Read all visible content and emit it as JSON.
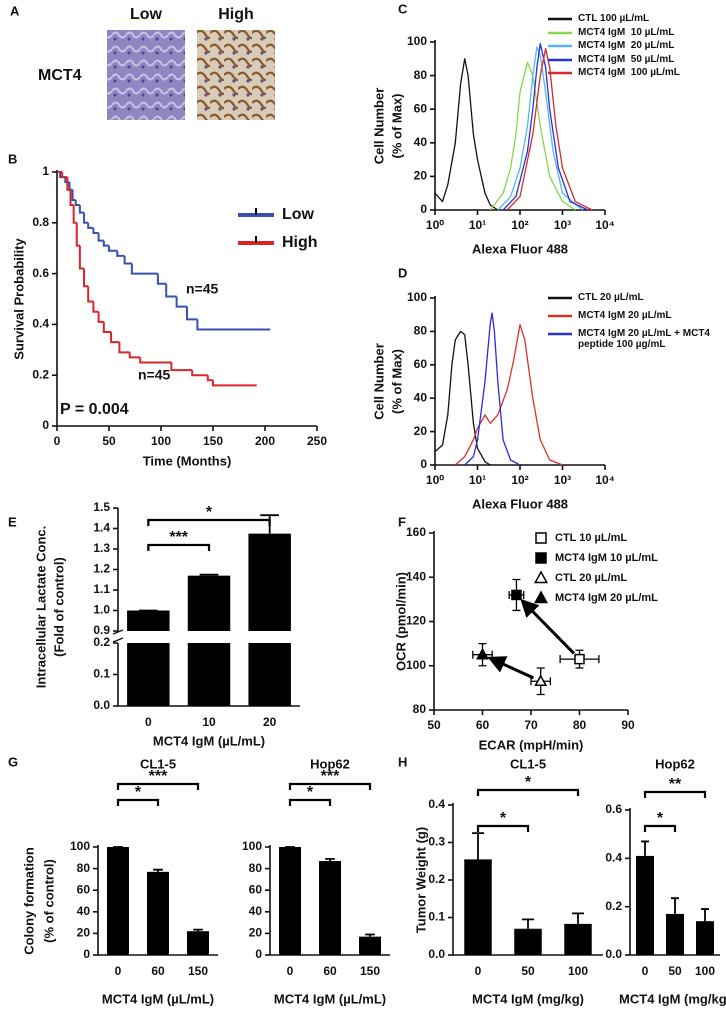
{
  "panel_a": {
    "panel": "A",
    "columns": [
      "Low",
      "High"
    ],
    "row_label": "MCT4"
  },
  "chart_data": [
    {
      "type": "line",
      "panel": "B",
      "step": true,
      "xlabel": "Time (Months)",
      "ylabel": "Survival Probability",
      "xlim": [
        0,
        250
      ],
      "xticks": [
        0,
        50,
        100,
        150,
        200,
        250
      ],
      "ylim": [
        0,
        1
      ],
      "yticks": [
        0,
        0.2,
        0.4,
        0.6,
        0.8,
        1
      ],
      "legend": "upper right",
      "series": [
        {
          "name": "Low",
          "color": "#3651b0",
          "x": [
            0,
            3,
            8,
            12,
            15,
            18,
            22,
            26,
            30,
            35,
            40,
            45,
            50,
            58,
            65,
            72,
            97,
            105,
            115,
            125,
            135,
            205
          ],
          "values": [
            1,
            0.98,
            0.96,
            0.93,
            0.89,
            0.87,
            0.84,
            0.8,
            0.78,
            0.76,
            0.73,
            0.71,
            0.69,
            0.67,
            0.64,
            0.6,
            0.56,
            0.51,
            0.47,
            0.42,
            0.38,
            0.38
          ]
        },
        {
          "name": "High",
          "color": "#d9252a",
          "x": [
            0,
            5,
            10,
            13,
            16,
            19,
            22,
            26,
            30,
            35,
            40,
            45,
            52,
            60,
            70,
            80,
            110,
            130,
            145,
            150,
            192
          ],
          "values": [
            1,
            0.98,
            0.93,
            0.87,
            0.8,
            0.71,
            0.62,
            0.55,
            0.49,
            0.45,
            0.41,
            0.37,
            0.33,
            0.29,
            0.27,
            0.25,
            0.22,
            0.2,
            0.18,
            0.16,
            0.16
          ]
        }
      ],
      "annotations": [
        "n=45",
        "n=45",
        "P = 0.004"
      ]
    },
    {
      "type": "line",
      "panel": "C",
      "xscale": "log",
      "xlabel": "Alexa Fluor 488",
      "ylabel": [
        "Cell Number",
        "(% of Max)"
      ],
      "xlim": [
        1,
        10000
      ],
      "xticks": [
        {
          "value": 1,
          "label": "10⁰"
        },
        {
          "value": 10,
          "label": "10¹"
        },
        {
          "value": 100,
          "label": "10²"
        },
        {
          "value": 1000,
          "label": "10³"
        },
        {
          "value": 10000,
          "label": "10⁴"
        }
      ],
      "ylim": [
        0,
        100
      ],
      "yticks": [
        0,
        20,
        40,
        60,
        80,
        100
      ],
      "legend": "upper right",
      "series": [
        {
          "name": "CTL 100 µL/mL",
          "color": "#111111",
          "x": [
            1,
            1.5,
            2,
            3,
            4,
            5,
            6,
            8,
            10,
            15,
            20,
            30
          ],
          "values": [
            10,
            5,
            15,
            40,
            75,
            90,
            80,
            45,
            30,
            10,
            3,
            0
          ]
        },
        {
          "name": "MCT4 IgM  10 µL/mL",
          "color": "#86d84a",
          "x": [
            20,
            40,
            60,
            80,
            100,
            150,
            200,
            300,
            500,
            1000,
            2000
          ],
          "values": [
            0,
            10,
            25,
            45,
            70,
            88,
            80,
            50,
            20,
            5,
            0
          ]
        },
        {
          "name": "MCT4 IgM  20 µL/mL",
          "color": "#5ab4f0",
          "x": [
            30,
            60,
            100,
            150,
            200,
            250,
            300,
            400,
            600,
            1000,
            3000
          ],
          "values": [
            0,
            8,
            25,
            50,
            80,
            97,
            92,
            70,
            35,
            10,
            0
          ]
        },
        {
          "name": "MCT4 IgM  50 µL/mL",
          "color": "#2233dd",
          "x": [
            40,
            80,
            150,
            200,
            250,
            300,
            400,
            500,
            800,
            1500,
            4000
          ],
          "values": [
            0,
            8,
            35,
            60,
            85,
            99,
            85,
            60,
            25,
            5,
            0
          ]
        },
        {
          "name": "MCT4 IgM  100 µL/mL",
          "color": "#d62a2a",
          "x": [
            50,
            100,
            200,
            300,
            400,
            500,
            700,
            1000,
            2000,
            5000
          ],
          "values": [
            0,
            8,
            45,
            80,
            96,
            85,
            50,
            25,
            5,
            0
          ]
        }
      ]
    },
    {
      "type": "line",
      "panel": "D",
      "xscale": "log",
      "xlabel": "Alexa Fluor 488",
      "ylabel": [
        "Cell Number",
        "(% of Max)"
      ],
      "xlim": [
        1,
        10000
      ],
      "xticks": [
        {
          "value": 1,
          "label": "10⁰"
        },
        {
          "value": 10,
          "label": "10¹"
        },
        {
          "value": 100,
          "label": "10²"
        },
        {
          "value": 1000,
          "label": "10³"
        },
        {
          "value": 10000,
          "label": "10⁴"
        }
      ],
      "ylim": [
        0,
        100
      ],
      "yticks": [
        0,
        20,
        40,
        60,
        80,
        100
      ],
      "legend": "upper right",
      "series": [
        {
          "name": "CTL 20 µL/mL",
          "color": "#111111",
          "x": [
            1,
            1.5,
            2,
            2.5,
            3,
            4,
            5,
            6,
            8,
            10,
            15,
            20
          ],
          "values": [
            8,
            12,
            30,
            60,
            75,
            80,
            78,
            60,
            25,
            10,
            2,
            0
          ]
        },
        {
          "name": "MCT4 IgM 20 µL/mL",
          "color": "#d9302c",
          "x": [
            3,
            5,
            8,
            10,
            15,
            20,
            30,
            50,
            70,
            100,
            130,
            200,
            300,
            500,
            1000
          ],
          "values": [
            0,
            5,
            15,
            22,
            30,
            25,
            30,
            45,
            62,
            84,
            75,
            40,
            15,
            3,
            0
          ]
        },
        {
          "name": "MCT4 IgM 20 µL/mL + MCT4 peptide 100 µg/mL",
          "color": "#2b2bdd",
          "x": [
            5,
            8,
            10,
            15,
            20,
            22,
            25,
            30,
            40,
            60,
            100
          ],
          "values": [
            0,
            5,
            15,
            50,
            85,
            91,
            80,
            50,
            15,
            3,
            0
          ]
        }
      ]
    },
    {
      "type": "bar",
      "panel": "E",
      "xlabel": "MCT4 IgM (µL/mL)",
      "ylabel": [
        "Intracellular Lactate Conc.",
        "(Fold of control)"
      ],
      "ylim": [
        0,
        1.5
      ],
      "broken_y": [
        [
          0,
          0.2
        ],
        [
          0.9,
          1.5
        ]
      ],
      "yticks": [
        {
          "value": 0,
          "label": "0.0"
        },
        0.1,
        0.2,
        0.9,
        {
          "value": 1,
          "label": "1.0"
        },
        1.1,
        1.2,
        1.3,
        1.4,
        1.5
      ],
      "categories": [
        "0",
        "10",
        "20"
      ],
      "values": [
        1,
        1.17,
        1.375
      ],
      "errors": [
        0,
        0.005,
        0.09
      ],
      "color": "#000000",
      "significance": [
        {
          "from": "0",
          "to": "10",
          "text": "***"
        },
        {
          "from": "0",
          "to": "20",
          "text": "*"
        }
      ]
    },
    {
      "type": "scatter",
      "panel": "F",
      "xlabel": "ECAR (mpH/min)",
      "ylabel": "OCR (pmol/min)",
      "xlim": [
        50,
        90
      ],
      "xticks": [
        50,
        60,
        70,
        80,
        90
      ],
      "ylim": [
        80,
        160
      ],
      "yticks": [
        80,
        100,
        120,
        140,
        160
      ],
      "legend": "upper right",
      "series": [
        {
          "name": "CTL 10 µL/mL",
          "color": "#000000",
          "marker": "square",
          "filled": false,
          "x": [
            80
          ],
          "values": [
            103
          ],
          "xerr": [
            4
          ],
          "yerr": [
            4
          ]
        },
        {
          "name": "MCT4 IgM 10 µL/mL",
          "color": "#000000",
          "marker": "square",
          "filled": true,
          "x": [
            67
          ],
          "values": [
            132
          ],
          "xerr": [
            1.5
          ],
          "yerr": [
            7
          ]
        },
        {
          "name": "CTL 20 µL/mL",
          "color": "#000000",
          "marker": "triangle",
          "filled": false,
          "x": [
            72
          ],
          "values": [
            93
          ],
          "xerr": [
            2
          ],
          "yerr": [
            6
          ]
        },
        {
          "name": "MCT4 IgM 20 µL/mL",
          "color": "#000000",
          "marker": "triangle",
          "filled": true,
          "x": [
            60
          ],
          "values": [
            105
          ],
          "xerr": [
            2
          ],
          "yerr": [
            5
          ]
        }
      ],
      "arrows": [
        [
          "CTL 10 µL/mL",
          "MCT4 IgM 10 µL/mL"
        ],
        [
          "CTL 20 µL/mL",
          "MCT4 IgM 20 µL/mL"
        ]
      ]
    },
    {
      "type": "bar",
      "panel": "G",
      "title": "CL1-5",
      "xlabel": "MCT4 IgM (µL/mL)",
      "ylabel": [
        "Colony formation",
        "(% of control)"
      ],
      "ylim": [
        0,
        100
      ],
      "yticks": [
        0,
        20,
        40,
        60,
        80,
        100
      ],
      "categories": [
        "0",
        "60",
        "150"
      ],
      "values": [
        100,
        77,
        22
      ],
      "errors": [
        0,
        2,
        1.5
      ],
      "color": "#000000",
      "significance": [
        {
          "from": "0",
          "to": "60",
          "text": "*"
        },
        {
          "from": "0",
          "to": "150",
          "text": "***"
        }
      ]
    },
    {
      "type": "bar",
      "title": "Hop62",
      "xlabel": "MCT4 IgM (µL/mL)",
      "ylim": [
        0,
        100
      ],
      "yticks": [
        0,
        20,
        40,
        60,
        80,
        100
      ],
      "categories": [
        "0",
        "60",
        "150"
      ],
      "values": [
        100,
        87,
        17
      ],
      "errors": [
        0,
        2,
        2
      ],
      "color": "#000000",
      "significance": [
        {
          "from": "0",
          "to": "60",
          "text": "*"
        },
        {
          "from": "0",
          "to": "150",
          "text": "***"
        }
      ]
    },
    {
      "type": "bar",
      "panel": "H",
      "title": "CL1-5",
      "xlabel": "MCT4 IgM (mg/kg)",
      "ylabel": "Tumor Weight (g)",
      "ylim": [
        0,
        0.4
      ],
      "yticks": [
        {
          "value": 0,
          "label": "0.0"
        },
        0.1,
        0.2,
        0.3,
        0.4
      ],
      "categories": [
        "0",
        "50",
        "100"
      ],
      "values": [
        0.255,
        0.07,
        0.083
      ],
      "errors": [
        0.07,
        0.025,
        0.028
      ],
      "color": "#000000",
      "significance": [
        {
          "from": "0",
          "to": "50",
          "text": "*"
        },
        {
          "from": "0",
          "to": "100",
          "text": "*"
        }
      ]
    },
    {
      "type": "bar",
      "title": "Hop62",
      "xlabel": "MCT4 IgM (mg/kg)",
      "ylim": [
        0,
        0.6
      ],
      "yticks": [
        {
          "value": 0,
          "label": "0.0"
        },
        0.2,
        0.4,
        0.6
      ],
      "categories": [
        "0",
        "50",
        "100"
      ],
      "values": [
        0.41,
        0.17,
        0.14
      ],
      "errors": [
        0.06,
        0.065,
        0.05
      ],
      "color": "#000000",
      "significance": [
        {
          "from": "0",
          "to": "50",
          "text": "*"
        },
        {
          "from": "0",
          "to": "100",
          "text": "**"
        }
      ]
    }
  ]
}
